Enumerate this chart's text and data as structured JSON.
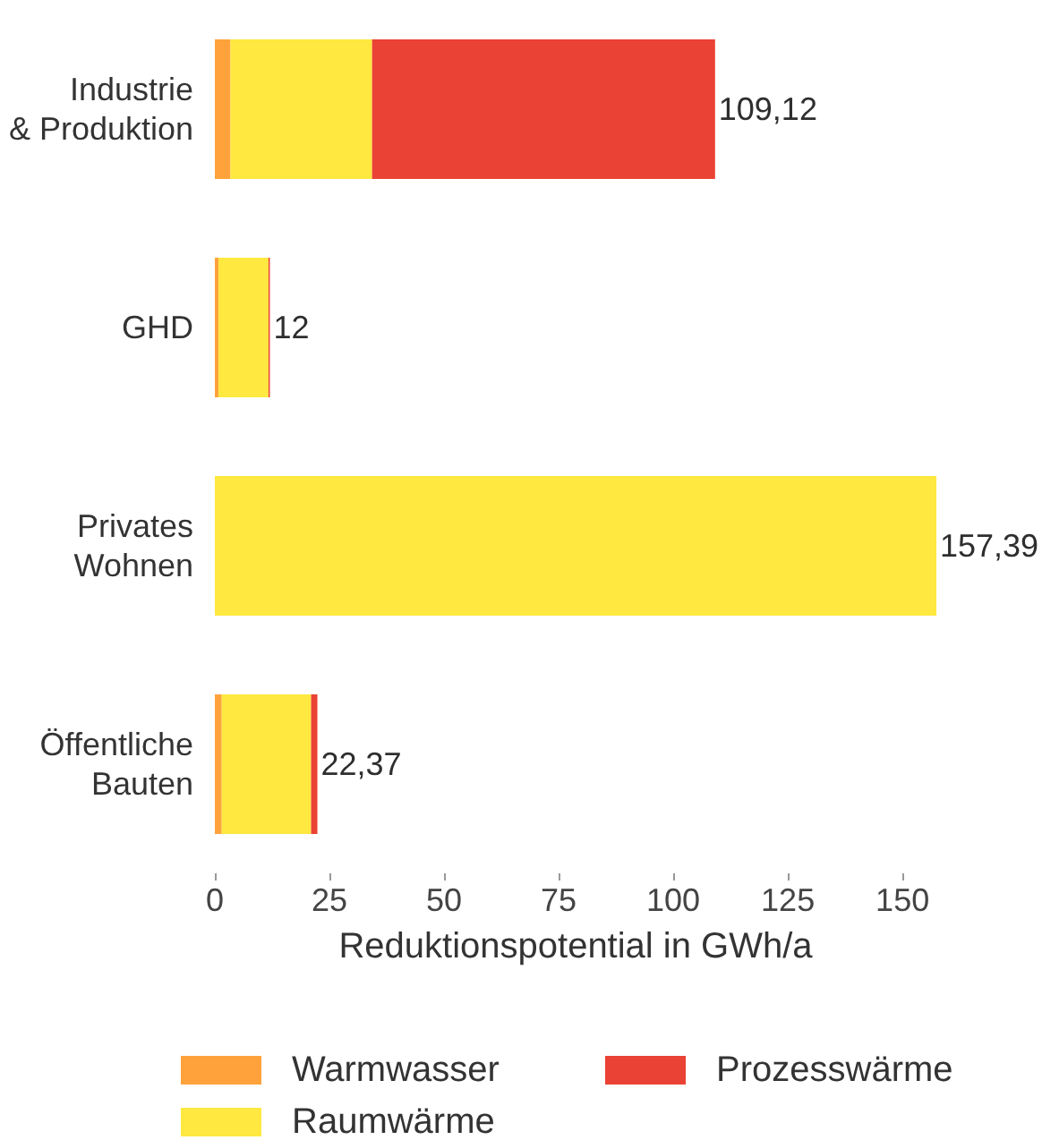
{
  "chart_data": {
    "type": "bar",
    "orientation": "horizontal",
    "stacked": true,
    "xlabel": "Reduktionspotential in GWh/a",
    "categories": [
      "Industrie\n& Produktion",
      "GHD",
      "Privates\nWohnen",
      "Öffentliche\nBauten"
    ],
    "series": [
      {
        "name": "Warmwasser",
        "color": "#ffa23b",
        "values": [
          3.4,
          0.8,
          null,
          1.5
        ]
      },
      {
        "name": "Raumwärme",
        "color": "#ffe83f",
        "values": [
          30.9,
          10.9,
          157.39,
          19.5
        ]
      },
      {
        "name": "Prozesswärme",
        "color": "#ea4234",
        "values": [
          74.82,
          0.3,
          null,
          1.37
        ]
      }
    ],
    "totals": [
      "109,12",
      "12",
      "157,39",
      "22,37"
    ],
    "xlim": [
      0,
      157.39
    ],
    "xticks": [
      0,
      25,
      50,
      75,
      100,
      125,
      150
    ],
    "legend": "bottom"
  }
}
